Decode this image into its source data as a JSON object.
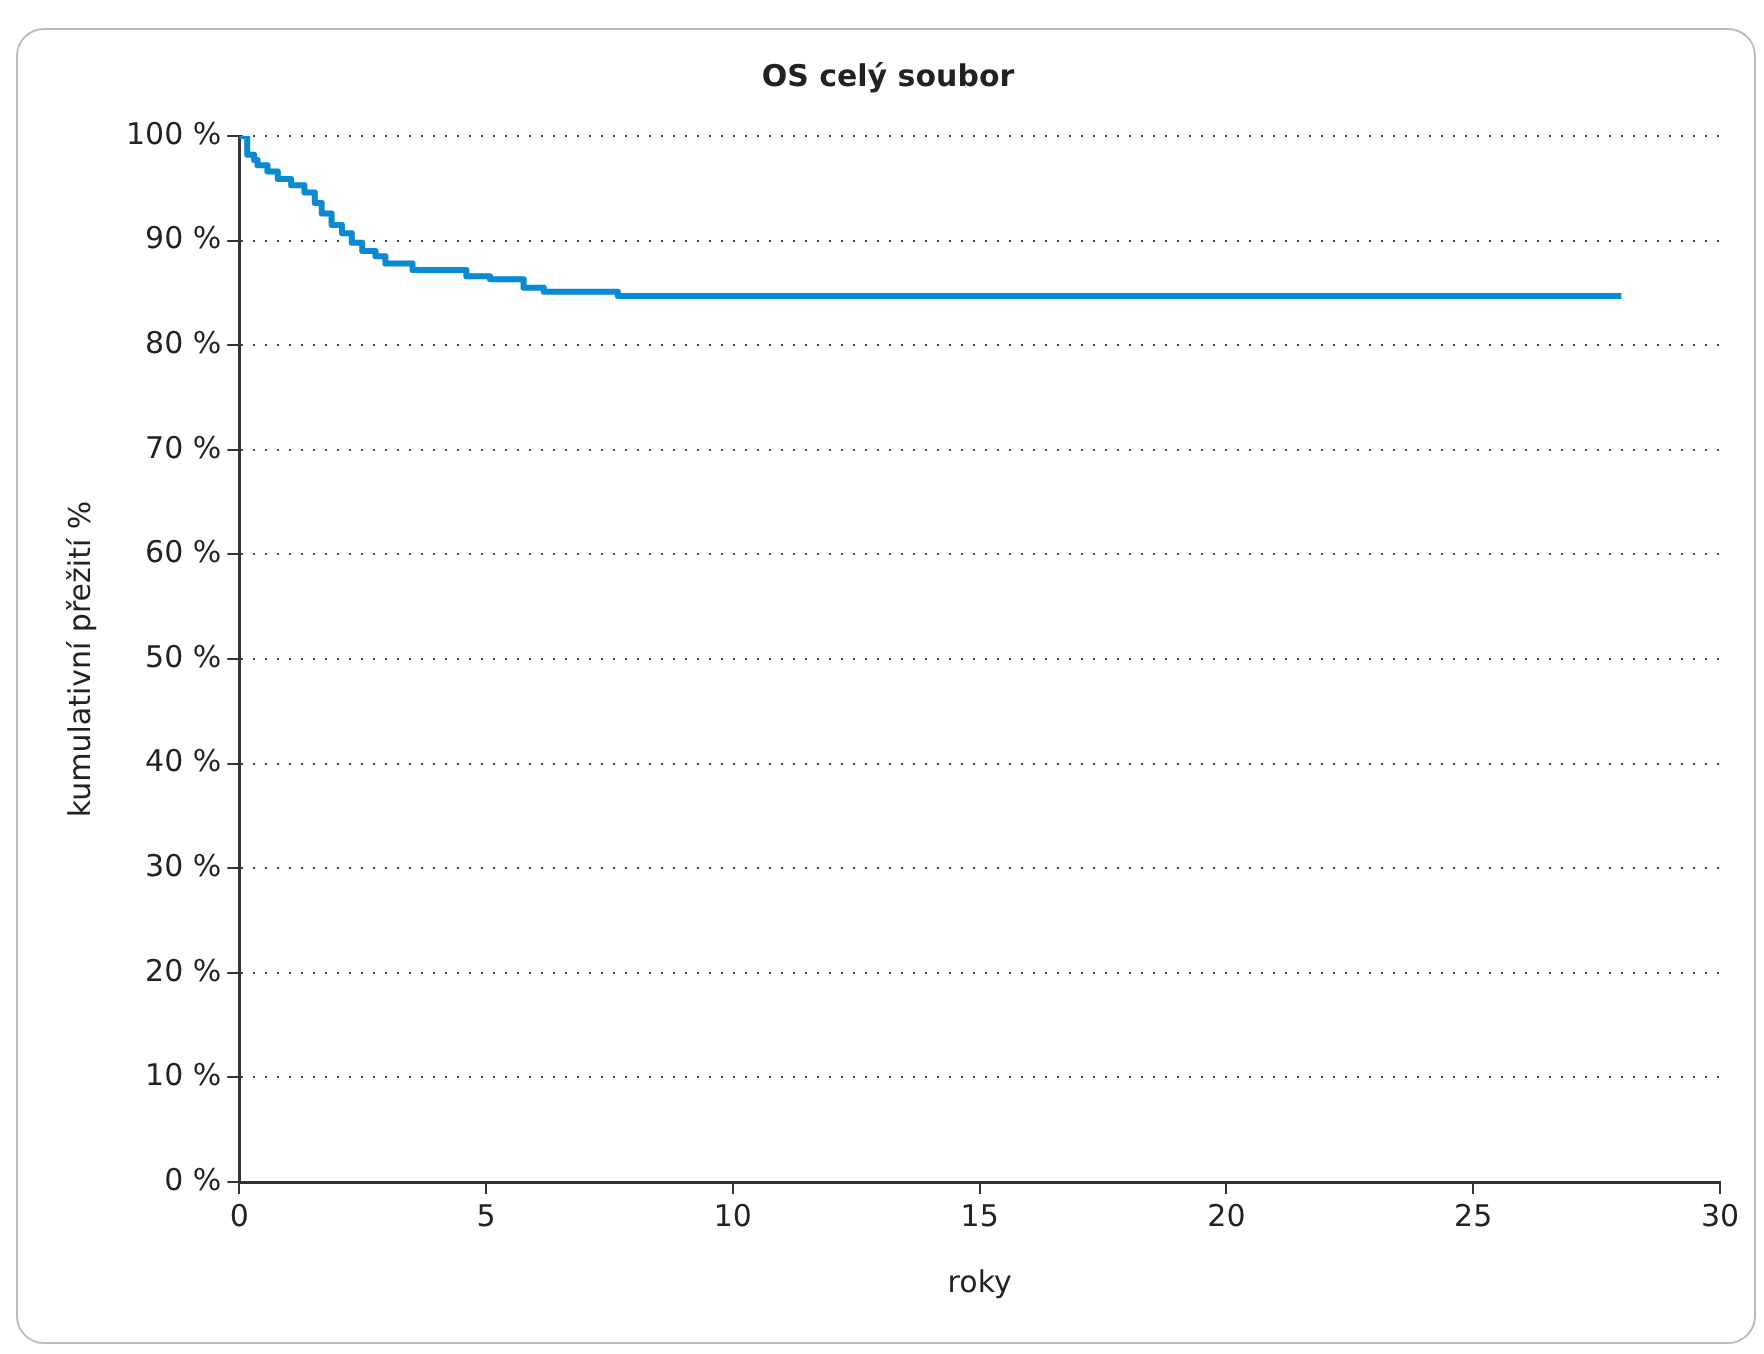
{
  "chart_data": {
    "type": "step",
    "title": "OS celý soubor",
    "xlabel": "roky",
    "ylabel": "kumulativní přežití %",
    "series": [
      {
        "color": "#0a8ad2",
        "x": [
          0,
          0.16,
          0.3,
          0.37,
          0.57,
          0.78,
          1.05,
          1.32,
          1.53,
          1.67,
          1.87,
          2.08,
          2.28,
          2.49,
          2.76,
          2.96,
          3.51,
          4.6,
          5.08,
          5.76,
          6.17,
          7.67,
          9.93,
          28.0
        ],
        "values": [
          100,
          100,
          98.2,
          97.7,
          97.2,
          96.6,
          95.9,
          95.3,
          94.6,
          93.6,
          92.6,
          91.5,
          90.7,
          89.8,
          89.0,
          88.5,
          87.8,
          87.2,
          86.6,
          86.3,
          85.5,
          85.1,
          84.7,
          84.7
        ]
      }
    ],
    "xlim": [
      0,
      30
    ],
    "xticks": [
      0,
      5,
      10,
      15,
      20,
      25,
      30
    ],
    "ylim": [
      0,
      100
    ],
    "yticks": [
      {
        "value": 0,
        "label": "0 %"
      },
      {
        "value": 10,
        "label": "10 %"
      },
      {
        "value": 20,
        "label": "20 %"
      },
      {
        "value": 30,
        "label": "30 %"
      },
      {
        "value": 40,
        "label": "40 %"
      },
      {
        "value": 50,
        "label": "50 %"
      },
      {
        "value": 60,
        "label": "60 %"
      },
      {
        "value": 70,
        "label": "70 %"
      },
      {
        "value": 80,
        "label": "80 %"
      },
      {
        "value": 90,
        "label": "90 %"
      },
      {
        "value": 100,
        "label": "100 %"
      }
    ],
    "grid": "y",
    "legend": false,
    "marker": "none",
    "line_style": "solid"
  }
}
